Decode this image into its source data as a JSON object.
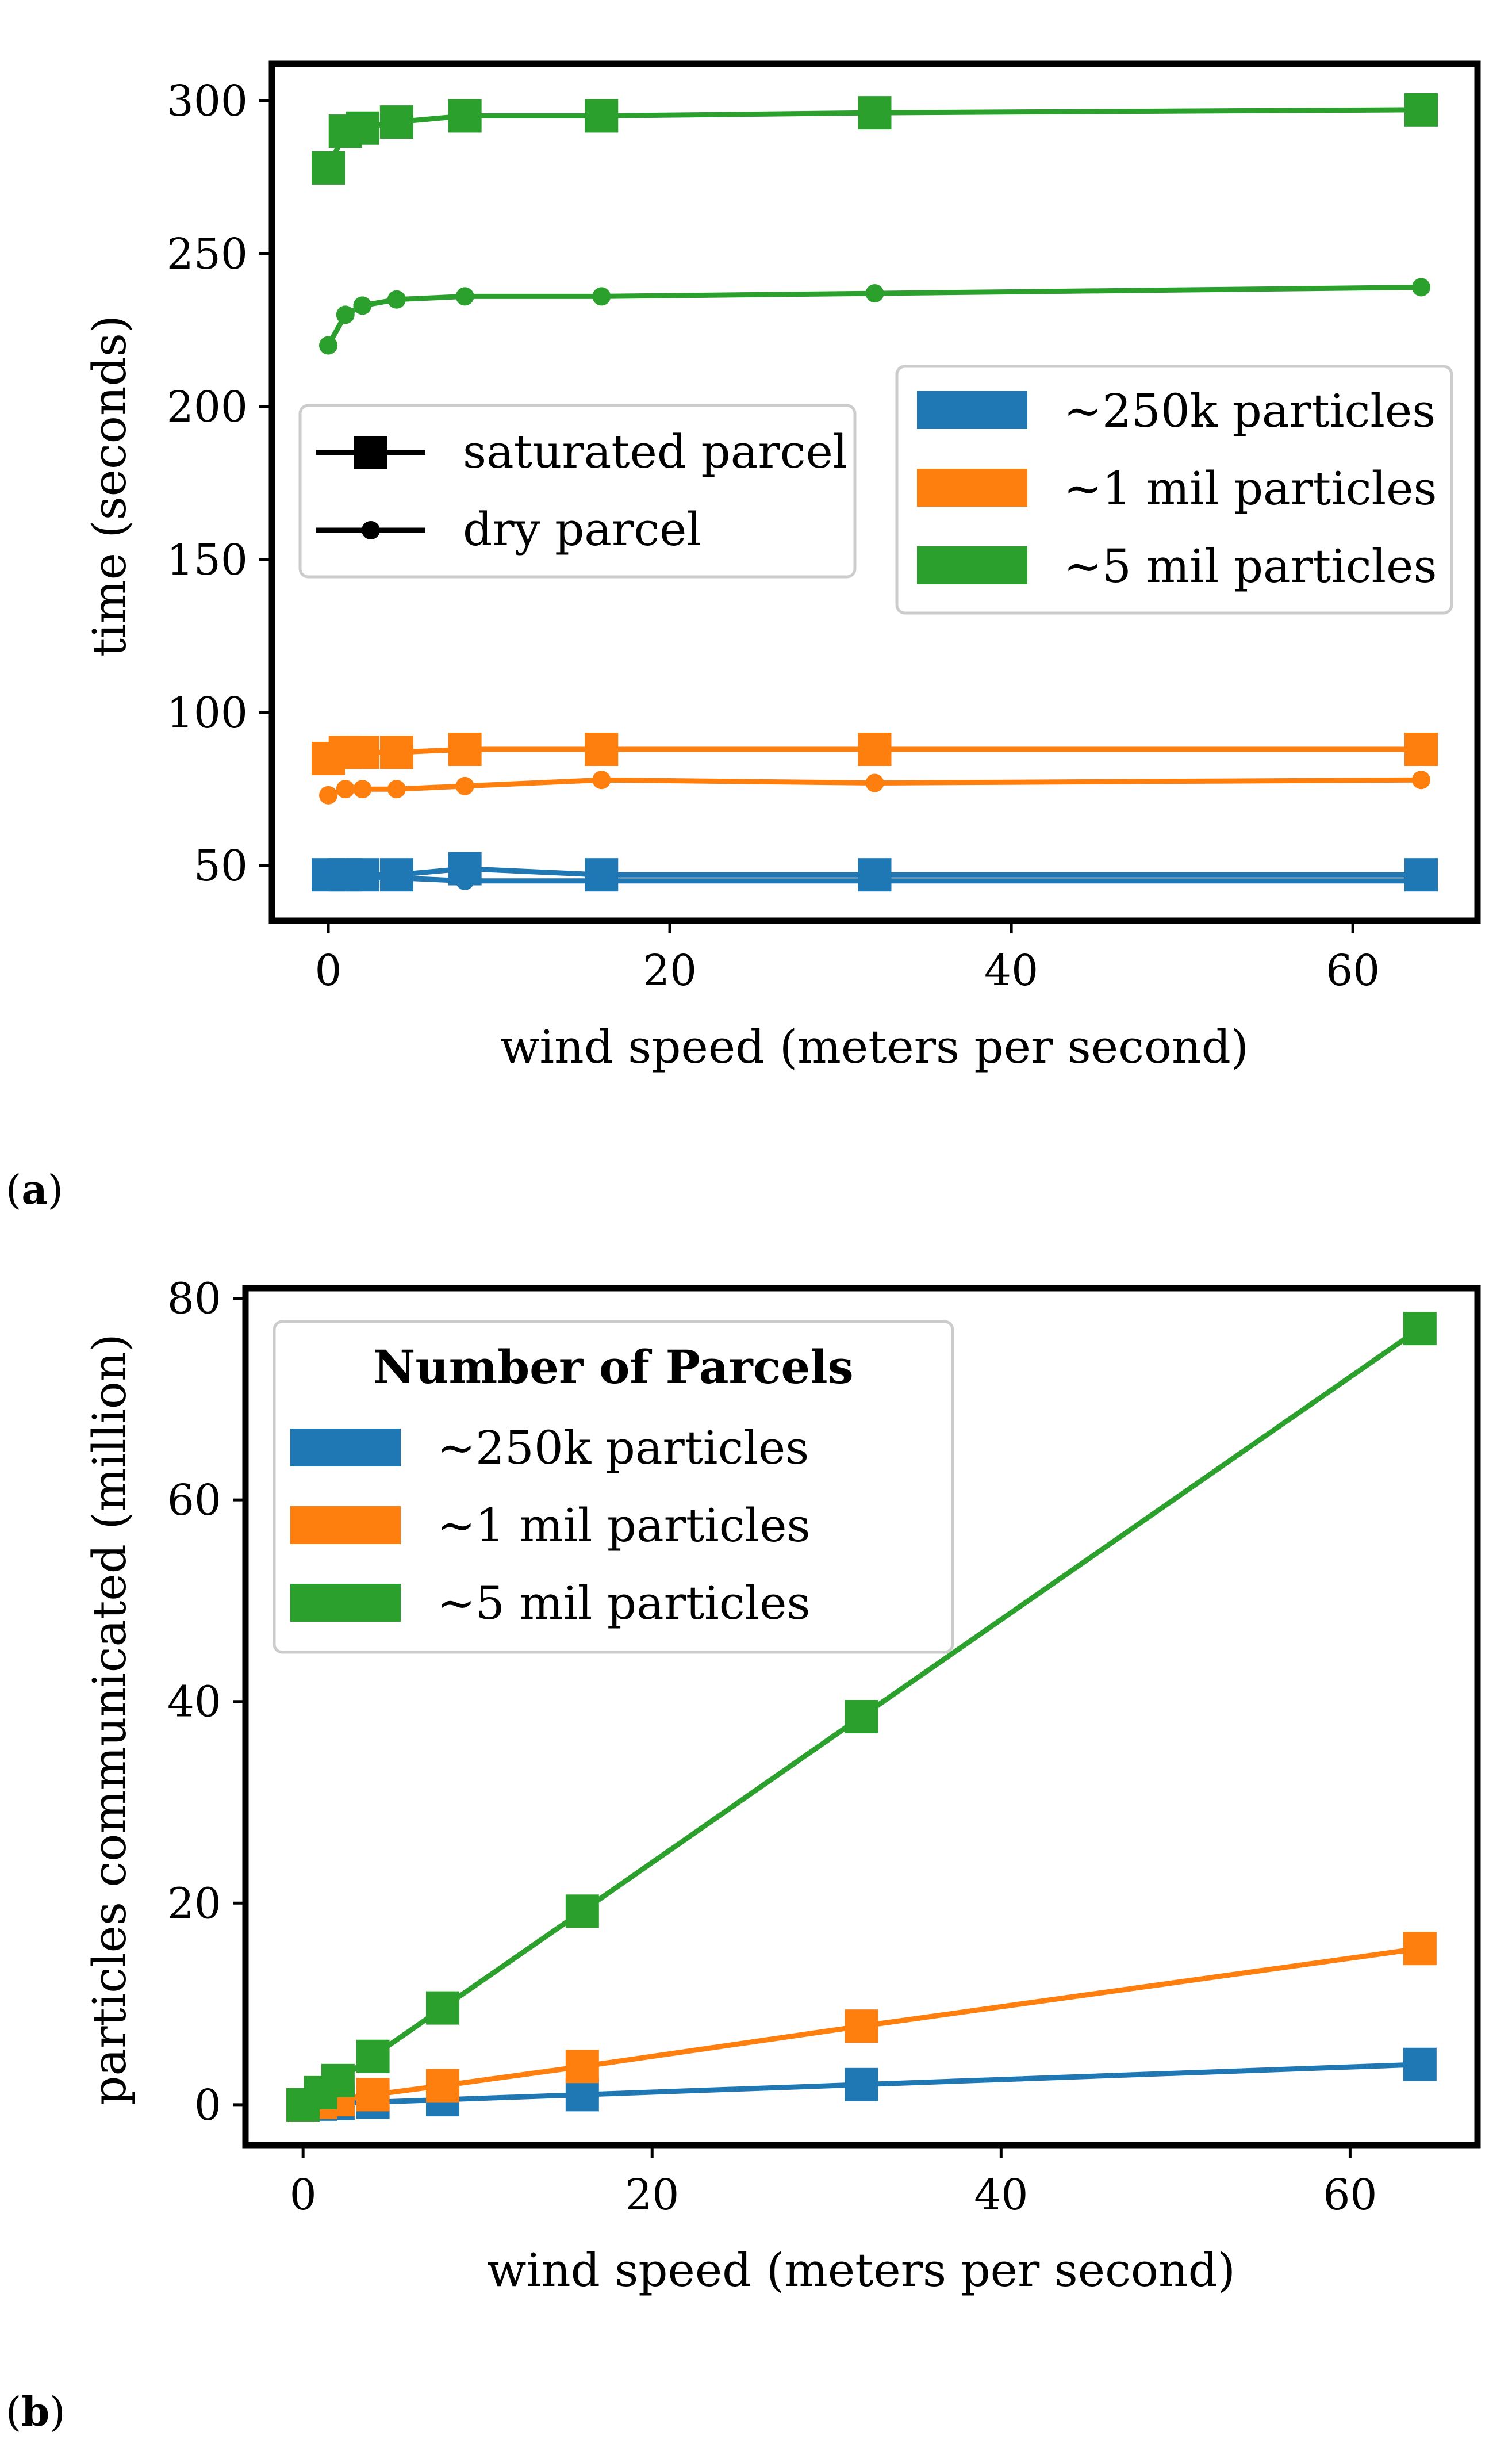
{
  "colors": {
    "blue": "#1f77b4",
    "orange": "#ff7f0e",
    "green": "#2ca02c",
    "black": "#000000"
  },
  "chart_data": [
    {
      "panel": "(a)",
      "panel_letter": "a",
      "type": "line",
      "xlabel": "wind speed (meters per second)",
      "ylabel": "time (seconds)",
      "xlim": [
        -3.3,
        67.3
      ],
      "ylim": [
        32,
        312
      ],
      "xticks": [
        0,
        20,
        40,
        60
      ],
      "yticks": [
        50,
        100,
        150,
        200,
        250,
        300
      ],
      "x": [
        0,
        1,
        2,
        4,
        8,
        16,
        32,
        64
      ],
      "series": [
        {
          "name": "~250k particles",
          "marker_type": "saturated parcel",
          "color_key": "blue",
          "values": [
            47,
            47,
            47,
            47,
            49,
            47,
            47,
            47
          ]
        },
        {
          "name": "~250k particles",
          "marker_type": "dry parcel",
          "color_key": "blue",
          "values": [
            46,
            46,
            46,
            46,
            45,
            45,
            45,
            45
          ]
        },
        {
          "name": "~1 mil particles",
          "marker_type": "saturated parcel",
          "color_key": "orange",
          "values": [
            85,
            87,
            87,
            87,
            88,
            88,
            88,
            88
          ]
        },
        {
          "name": "~1 mil particles",
          "marker_type": "dry parcel",
          "color_key": "orange",
          "values": [
            73,
            75,
            75,
            75,
            76,
            78,
            77,
            78
          ]
        },
        {
          "name": "~5 mil particles",
          "marker_type": "saturated parcel",
          "color_key": "green",
          "values": [
            278,
            290,
            291,
            293,
            295,
            295,
            296,
            297
          ]
        },
        {
          "name": "~5 mil particles",
          "marker_type": "dry parcel",
          "color_key": "green",
          "values": [
            220,
            230,
            233,
            235,
            236,
            236,
            237,
            239
          ]
        }
      ],
      "legend_markers": {
        "placement": "center-left",
        "items": [
          {
            "label": "saturated parcel",
            "marker": "square"
          },
          {
            "label": "dry parcel",
            "marker": "circle"
          }
        ]
      },
      "legend_colors": {
        "placement": "center-right",
        "items": [
          {
            "label": "∼250k particles",
            "color_key": "blue"
          },
          {
            "label": "∼1 mil particles",
            "color_key": "orange"
          },
          {
            "label": "∼5 mil particles",
            "color_key": "green"
          }
        ]
      }
    },
    {
      "panel": "(b)",
      "panel_letter": "b",
      "type": "line",
      "xlabel": "wind speed (meters per second)",
      "ylabel": "particles communicated (million)",
      "xlim": [
        -3.3,
        67.3
      ],
      "ylim": [
        -4,
        81
      ],
      "xticks": [
        0,
        20,
        40,
        60
      ],
      "yticks": [
        0,
        20,
        40,
        60,
        80
      ],
      "x": [
        0,
        1,
        2,
        4,
        8,
        16,
        32,
        64
      ],
      "series": [
        {
          "name": "~250k particles",
          "color_key": "blue",
          "values": [
            0,
            0.06,
            0.12,
            0.25,
            0.5,
            1.0,
            2.0,
            4.0
          ]
        },
        {
          "name": "~1 mil particles",
          "color_key": "orange",
          "values": [
            0,
            0.24,
            0.5,
            1.0,
            1.9,
            3.8,
            7.8,
            15.5
          ]
        },
        {
          "name": "~5 mil particles",
          "color_key": "green",
          "values": [
            0,
            1.2,
            2.4,
            4.8,
            9.6,
            19.2,
            38.5,
            77
          ]
        }
      ],
      "legend": {
        "placement": "top-left",
        "title": "Number of Parcels",
        "items": [
          {
            "label": "∼250k particles",
            "color_key": "blue"
          },
          {
            "label": "∼1 mil particles",
            "color_key": "orange"
          },
          {
            "label": "∼5 mil particles",
            "color_key": "green"
          }
        ]
      }
    }
  ]
}
